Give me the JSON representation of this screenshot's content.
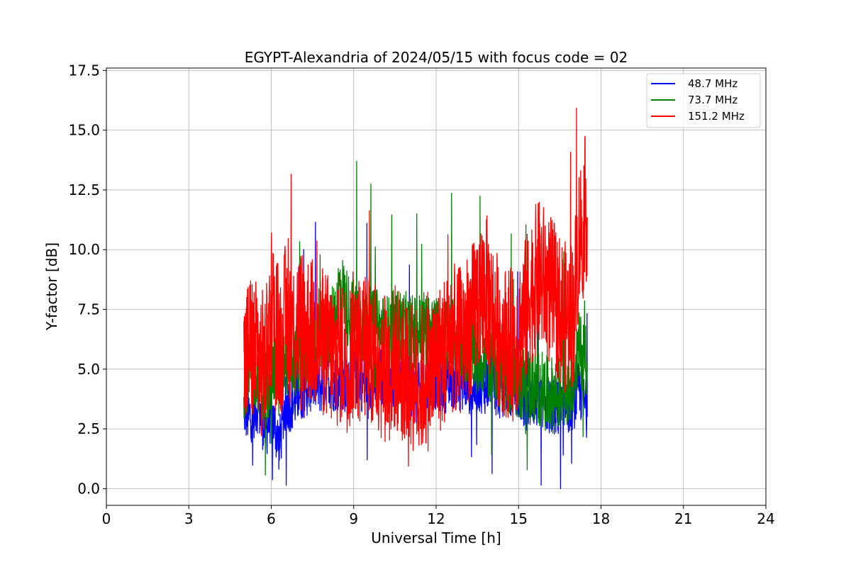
{
  "chart_data": {
    "type": "line",
    "title": "EGYPT-Alexandria of 2024/05/15 with focus code = 02",
    "xlabel": "Universal Time [h]",
    "ylabel": "Y-factor [dB]",
    "xlim": [
      0,
      24
    ],
    "ylim": [
      -0.7,
      17.6
    ],
    "x_ticks": [
      0,
      3,
      6,
      9,
      12,
      15,
      18,
      21,
      24
    ],
    "y_ticks": [
      0.0,
      2.5,
      5.0,
      7.5,
      10.0,
      12.5,
      15.0,
      17.5
    ],
    "x_tick_labels": [
      "0",
      "3",
      "6",
      "9",
      "12",
      "15",
      "18",
      "21",
      "24"
    ],
    "y_tick_labels": [
      "0.0",
      "2.5",
      "5.0",
      "7.5",
      "10.0",
      "12.5",
      "15.0",
      "17.5"
    ],
    "grid": true,
    "legend_position": "top-right",
    "series": [
      {
        "name": " 48.7 MHz",
        "color": "#0000ff",
        "x": [
          5.0,
          5.2,
          5.5,
          5.8,
          6.0,
          6.3,
          6.5,
          6.8,
          7.0,
          7.3,
          7.5,
          7.8,
          8.0,
          8.3,
          8.5,
          8.8,
          9.0,
          9.3,
          9.5,
          9.8,
          10.0,
          10.3,
          10.5,
          10.8,
          11.0,
          11.3,
          11.5,
          11.8,
          12.0,
          12.3,
          12.5,
          12.8,
          13.0,
          13.3,
          13.5,
          13.8,
          14.0,
          14.3,
          14.5,
          14.8,
          15.0,
          15.3,
          15.5,
          15.8,
          16.0,
          16.3,
          16.5,
          16.8,
          17.0,
          17.2,
          17.5
        ],
        "y": [
          3.3,
          3.0,
          3.5,
          2.4,
          3.2,
          1.8,
          3.5,
          3.6,
          4.0,
          4.2,
          4.5,
          4.3,
          4.6,
          4.4,
          4.5,
          4.2,
          4.8,
          4.4,
          4.6,
          4.5,
          4.7,
          4.3,
          4.6,
          4.5,
          4.3,
          4.0,
          4.2,
          4.4,
          4.5,
          4.3,
          4.6,
          4.4,
          4.5,
          4.2,
          4.4,
          4.3,
          4.6,
          4.0,
          4.3,
          4.2,
          4.1,
          3.5,
          3.8,
          3.6,
          3.5,
          3.4,
          3.3,
          3.5,
          3.6,
          4.2,
          3.2
        ]
      },
      {
        "name": " 73.7 MHz",
        "color": "#008000",
        "x": [
          5.0,
          5.2,
          5.5,
          5.8,
          6.0,
          6.3,
          6.5,
          6.8,
          7.0,
          7.3,
          7.5,
          7.8,
          8.0,
          8.3,
          8.5,
          8.8,
          9.0,
          9.3,
          9.5,
          9.8,
          10.0,
          10.3,
          10.5,
          10.8,
          11.0,
          11.3,
          11.5,
          11.8,
          12.0,
          12.3,
          12.5,
          12.8,
          13.0,
          13.3,
          13.5,
          13.8,
          14.0,
          14.3,
          14.5,
          14.8,
          15.0,
          15.3,
          15.5,
          15.8,
          16.0,
          16.3,
          16.5,
          16.8,
          17.0,
          17.2,
          17.5
        ],
        "y": [
          4.5,
          5.0,
          4.8,
          4.2,
          5.0,
          4.5,
          5.5,
          5.2,
          5.6,
          5.8,
          6.0,
          6.2,
          6.5,
          7.0,
          8.5,
          7.5,
          7.2,
          6.8,
          6.5,
          6.8,
          6.6,
          6.5,
          6.8,
          6.7,
          6.6,
          6.5,
          6.8,
          6.7,
          6.4,
          6.5,
          6.6,
          6.2,
          6.0,
          5.8,
          5.5,
          5.3,
          5.2,
          5.0,
          4.8,
          4.6,
          4.5,
          4.4,
          4.3,
          4.2,
          4.0,
          3.9,
          4.0,
          4.2,
          4.8,
          5.8,
          5.5
        ]
      },
      {
        "name": "151.2 MHz",
        "color": "#ff0000",
        "x": [
          5.0,
          5.2,
          5.5,
          5.8,
          6.0,
          6.3,
          6.5,
          6.8,
          7.0,
          7.3,
          7.5,
          7.8,
          8.0,
          8.3,
          8.5,
          8.8,
          9.0,
          9.3,
          9.5,
          9.8,
          10.0,
          10.3,
          10.5,
          10.8,
          11.0,
          11.3,
          11.5,
          11.8,
          12.0,
          12.3,
          12.5,
          12.8,
          13.0,
          13.3,
          13.5,
          13.8,
          14.0,
          14.3,
          14.5,
          14.8,
          15.0,
          15.3,
          15.5,
          15.8,
          16.0,
          16.3,
          16.5,
          16.8,
          17.0,
          17.2,
          17.5
        ],
        "y": [
          5.0,
          6.0,
          5.5,
          5.0,
          8.0,
          6.0,
          7.0,
          6.5,
          7.0,
          6.8,
          6.5,
          6.2,
          6.0,
          5.5,
          5.8,
          5.5,
          6.0,
          5.8,
          6.0,
          5.5,
          5.2,
          5.0,
          5.5,
          5.2,
          4.8,
          4.5,
          4.6,
          4.8,
          5.2,
          5.8,
          6.5,
          6.0,
          6.5,
          7.0,
          8.0,
          8.5,
          7.5,
          6.5,
          6.2,
          6.0,
          6.5,
          7.5,
          8.5,
          9.0,
          8.5,
          8.0,
          7.5,
          7.0,
          7.5,
          10.5,
          12.0
        ]
      }
    ]
  }
}
